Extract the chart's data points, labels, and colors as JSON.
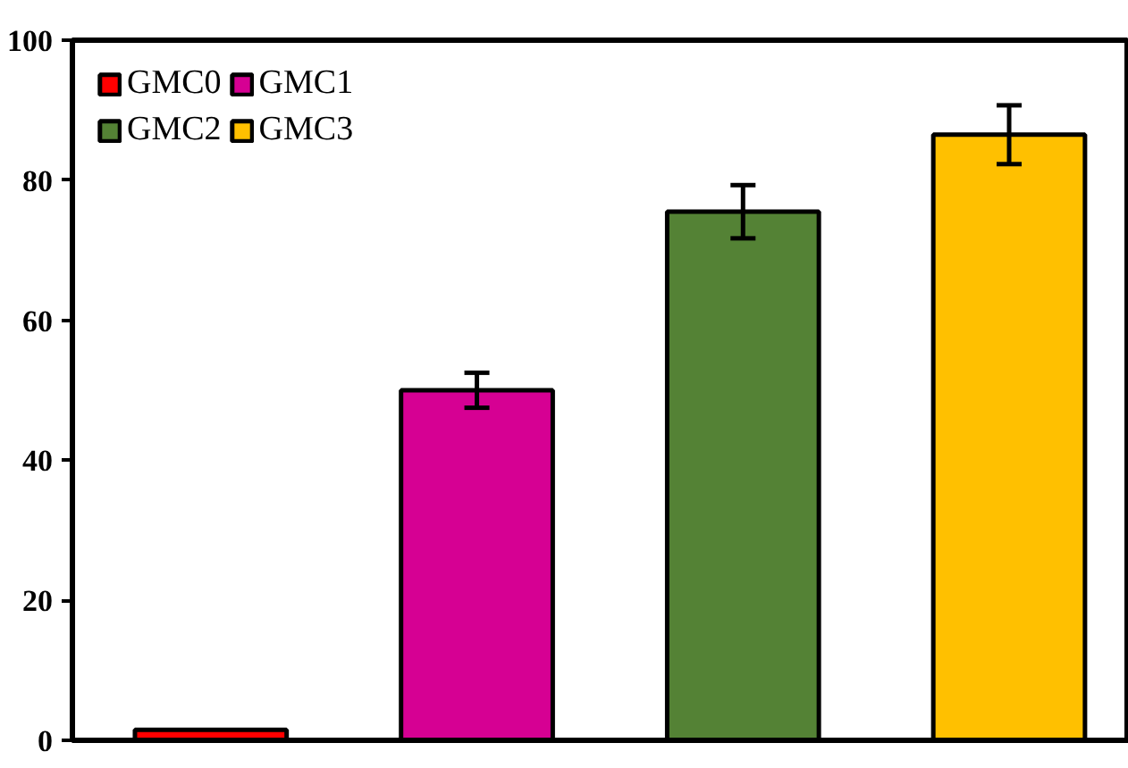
{
  "chart_data": {
    "type": "bar",
    "categories": [
      null,
      null,
      null,
      null
    ],
    "series": [
      {
        "name": "GMC0",
        "color": "#ff0000",
        "values": [
          1.5,
          null,
          null,
          null
        ],
        "errors": [
          null,
          null,
          null,
          null
        ]
      },
      {
        "name": "GMC1",
        "color": "#d60093",
        "values": [
          null,
          50,
          null,
          null
        ],
        "errors": [
          null,
          2.5,
          null,
          null
        ]
      },
      {
        "name": "GMC2",
        "color": "#548235",
        "values": [
          null,
          null,
          75.5,
          null
        ],
        "errors": [
          null,
          null,
          3.8,
          null
        ]
      },
      {
        "name": "GMC3",
        "color": "#ffc000",
        "values": [
          null,
          null,
          null,
          86.5
        ],
        "errors": [
          null,
          null,
          null,
          4.2
        ]
      }
    ],
    "ylim": [
      0,
      100
    ],
    "yticks": [
      0,
      20,
      40,
      60,
      80,
      100
    ],
    "grid": false,
    "legend": "top left"
  }
}
